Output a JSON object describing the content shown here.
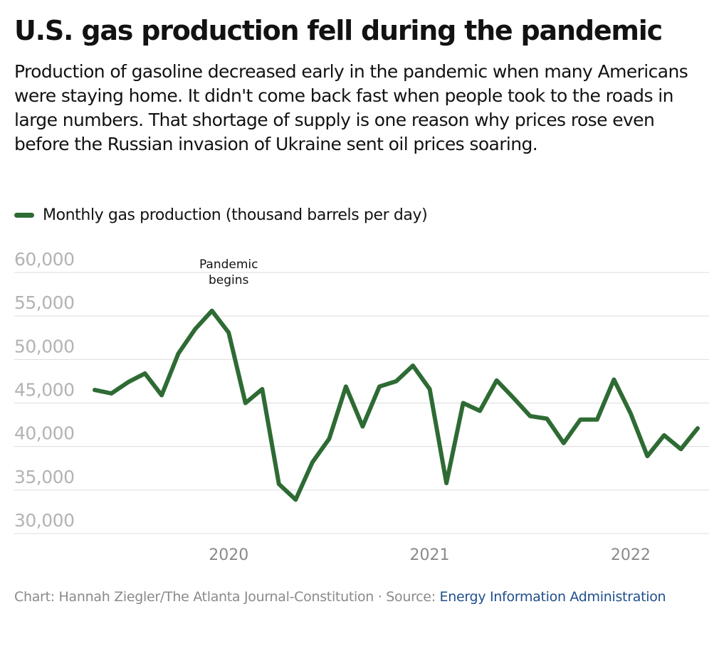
{
  "title": "U.S. gas production fell during the pandemic",
  "subtitle": "Production of gasoline decreased early in the pandemic when many Americans were staying home. It didn't come back fast when people took to the roads in large numbers. That shortage of supply is one reason why prices rose even before the Russian invasion of Ukraine sent oil prices soaring.",
  "legend": {
    "label": "Monthly gas production (thousand barrels per day)",
    "color": "#2e6b34"
  },
  "footer": {
    "credit": "Chart: Hannah Ziegler/The Atlanta Journal-Constitution · Source: ",
    "source_link": "Energy Information Administration"
  },
  "chart_data": {
    "type": "line",
    "title": "U.S. gas production fell during the pandemic",
    "xlabel": "",
    "ylabel": "",
    "ylim": [
      30000,
      60000
    ],
    "yticks": [
      60000,
      55000,
      50000,
      45000,
      40000,
      35000,
      30000
    ],
    "ytick_labels": [
      "60,000",
      "55,000",
      "50,000",
      "45,000",
      "40,000",
      "35,000",
      "30,000"
    ],
    "xticks": [
      "2020",
      "2021",
      "2022"
    ],
    "grid": true,
    "series": [
      {
        "name": "Monthly gas production (thousand barrels per day)",
        "color": "#2e6b34",
        "x": [
          "2019-05",
          "2019-06",
          "2019-07",
          "2019-08",
          "2019-09",
          "2019-10",
          "2019-11",
          "2019-12",
          "2020-01",
          "2020-02",
          "2020-03",
          "2020-04",
          "2020-05",
          "2020-06",
          "2020-07",
          "2020-08",
          "2020-09",
          "2020-10",
          "2020-11",
          "2020-12",
          "2021-01",
          "2021-02",
          "2021-03",
          "2021-04",
          "2021-05",
          "2021-06",
          "2021-07",
          "2021-08",
          "2021-09",
          "2021-10",
          "2021-11",
          "2021-12",
          "2022-01",
          "2022-02",
          "2022-03",
          "2022-04",
          "2022-05"
        ],
        "values": [
          46500,
          46100,
          47400,
          48400,
          45900,
          50700,
          53500,
          55600,
          53100,
          45000,
          46600,
          35700,
          33900,
          38200,
          40900,
          46900,
          42300,
          46900,
          47500,
          49300,
          46600,
          35800,
          45000,
          44100,
          47600,
          45600,
          43500,
          43200,
          40400,
          43100,
          43100,
          47700,
          43800,
          38900,
          41300,
          39700,
          42100
        ]
      }
    ],
    "annotations": [
      {
        "text_lines": [
          "Pandemic",
          "begins"
        ],
        "x": "2020-01"
      }
    ]
  }
}
